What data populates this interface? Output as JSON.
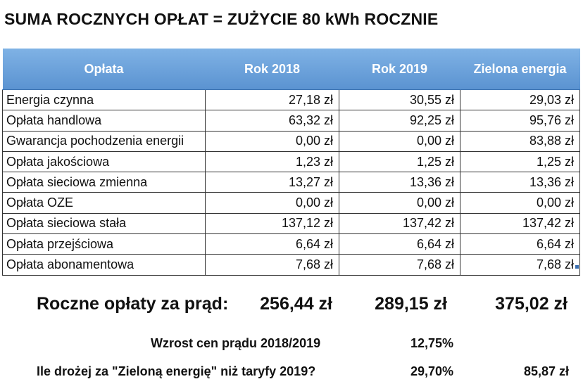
{
  "title": "SUMA ROCZNYCH OPŁAT = ZUŻYCIE 80 kWh ROCZNIE",
  "table": {
    "headers": [
      "Opłata",
      "Rok 2018",
      "Rok 2019",
      "Zielona energia"
    ],
    "rows": [
      [
        "Energia czynna",
        "27,18 zł",
        "30,55 zł",
        "29,03 zł"
      ],
      [
        "Opłata handlowa",
        "63,32 zł",
        "92,25 zł",
        "95,76 zł"
      ],
      [
        "Gwarancja pochodzenia energii",
        "0,00 zł",
        "0,00 zł",
        "83,88 zł"
      ],
      [
        "Opłata jakościowa",
        "1,23 zł",
        "1,25 zł",
        "1,25 zł"
      ],
      [
        "Opłata sieciowa zmienna",
        "13,27 zł",
        "13,36 zł",
        "13,36 zł"
      ],
      [
        "Opłata OZE",
        "0,00 zł",
        "0,00 zł",
        "0,00 zł"
      ],
      [
        "Opłata sieciowa stała",
        "137,12 zł",
        "137,42 zł",
        "137,42 zł"
      ],
      [
        "Opłata przejściowa",
        "6,64 zł",
        "6,64 zł",
        "6,64 zł"
      ],
      [
        "Opłata abonamentowa",
        "7,68 zł",
        "7,68 zł",
        "7,68 zł"
      ]
    ]
  },
  "summary": {
    "label": "Roczne opłaty za prąd:",
    "values": [
      "256,44 zł",
      "289,15 zł",
      "375,02 zł"
    ]
  },
  "increase": {
    "label": "Wzrost cen prądu 2018/2019",
    "value": "12,75%"
  },
  "green_comparison": {
    "label": "Ile drożej za \"Zieloną energię\" niż taryfy 2019?",
    "percent": "29,70%",
    "amount": "85,87 zł"
  },
  "colors": {
    "header_bg": "#6aa2dc",
    "header_text": "#ffffff",
    "border": "#333333"
  }
}
